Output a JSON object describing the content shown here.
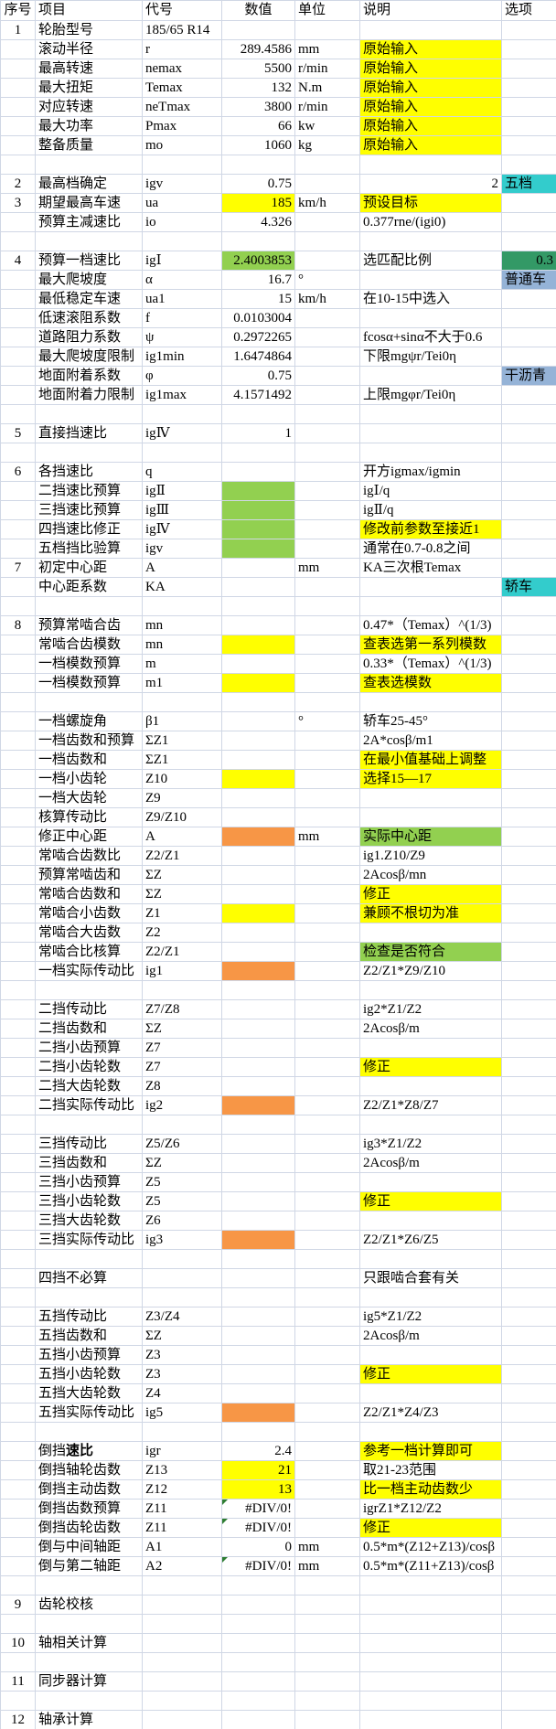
{
  "sheet": {
    "colors": {
      "y": "#FFFF00",
      "g": "#92D050",
      "o": "#F79646",
      "dgreen": "#339966",
      "cyan": "#33CCCC",
      "blue": "#95B3D7"
    },
    "columns": [
      {
        "key": "sn",
        "label": "序号"
      },
      {
        "key": "item",
        "label": "项目"
      },
      {
        "key": "code",
        "label": "代号"
      },
      {
        "key": "val",
        "label": "数值"
      },
      {
        "key": "unit",
        "label": "单位"
      },
      {
        "key": "note",
        "label": "说明"
      },
      {
        "key": "opt",
        "label": "选项"
      }
    ],
    "rows": [
      {
        "sn": "1",
        "item": "轮胎型号",
        "code": "185/65 R14"
      },
      {
        "item": "滚动半径",
        "code": "r",
        "val": "289.4586",
        "unit": "mm",
        "note": "原始输入",
        "noteBg": "y"
      },
      {
        "item": "最高转速",
        "code": "nemax",
        "val": "5500",
        "unit": "r/min",
        "note": "原始输入",
        "noteBg": "y"
      },
      {
        "item": "最大扭矩",
        "code": "Temax",
        "val": "132",
        "unit": "N.m",
        "note": "原始输入",
        "noteBg": "y"
      },
      {
        "item": "对应转速",
        "code": "neTmax",
        "val": "3800",
        "unit": "r/min",
        "note": "原始输入",
        "noteBg": "y"
      },
      {
        "item": "最大功率",
        "code": "Pmax",
        "val": "66",
        "unit": "kw",
        "note": "原始输入",
        "noteBg": "y"
      },
      {
        "item": "整备质量",
        "code": "mo",
        "val": "1060",
        "unit": "kg",
        "note": "原始输入",
        "noteBg": "y"
      },
      {},
      {
        "sn": "2",
        "item": "最高档确定",
        "code": "igv",
        "val": "0.75",
        "note": "2",
        "noteAlign": "right",
        "opt": "五档",
        "optBg": "cyan"
      },
      {
        "sn": "3",
        "item": "期望最高车速",
        "code": "ua",
        "val": "185",
        "valBg": "y",
        "unit": "km/h",
        "note": "预设目标",
        "noteBg": "y"
      },
      {
        "item": "预算主减速比",
        "code": "io",
        "val": "4.326",
        "note": "0.377rne/(igi0)"
      },
      {},
      {
        "sn": "4",
        "item": "预算一档速比",
        "code": "igⅠ",
        "val": "2.4003853",
        "valBg": "g",
        "note": "选匹配比例",
        "opt": "0.3",
        "optBg": "dgreen",
        "optAlign": "right"
      },
      {
        "item": "最大爬坡度",
        "code": "α",
        "val": "16.7",
        "unit": "°",
        "opt": "普通车",
        "optBg": "blue"
      },
      {
        "item": "最低稳定车速",
        "code": "ua1",
        "val": "15",
        "unit": "km/h",
        "note": "在10-15中选入"
      },
      {
        "item": "低速滚阻系数",
        "code": "f",
        "val": "0.0103004"
      },
      {
        "item": "道路阻力系数",
        "code": "ψ",
        "val": "0.2972265",
        "note": "fcosα+sinα不大于0.6"
      },
      {
        "item": "最大爬坡度限制",
        "code": "ig1min",
        "val": "1.6474864",
        "note": "下限mgψr/Tei0η"
      },
      {
        "item": "地面附着系数",
        "code": "φ",
        "val": "0.75",
        "opt": "干沥青",
        "optBg": "blue"
      },
      {
        "item": "地面附着力限制",
        "code": "ig1max",
        "val": "4.1571492",
        "note": "上限mgφr/Tei0η"
      },
      {},
      {
        "sn": "5",
        "item": "直接挡速比",
        "code": "igⅣ",
        "val": "1"
      },
      {},
      {
        "sn": "6",
        "item": "各挡速比",
        "code": "q",
        "note": "开方igmax/igmin"
      },
      {
        "item": "二挡速比预算",
        "code": "igⅡ",
        "valBg": "g",
        "note": "igⅠ/q"
      },
      {
        "item": "三挡速比预算",
        "code": "igⅢ",
        "valBg": "g",
        "note": "igⅡ/q"
      },
      {
        "item": "四挡速比修正",
        "code": "igⅣ",
        "valBg": "g",
        "note": "修改前参数至接近1",
        "noteBg": "y"
      },
      {
        "item": "五档挡比验算",
        "code": "igv",
        "valBg": "g",
        "note": "通常在0.7-0.8之间"
      },
      {
        "sn": "7",
        "item": "初定中心距",
        "code": "A",
        "unit": "mm",
        "note": "KA三次根Temax"
      },
      {
        "item": "中心距系数",
        "code": "KA",
        "opt": "轿车",
        "optBg": "cyan"
      },
      {},
      {
        "sn": "8",
        "item": "预算常啮合齿",
        "code": "mn",
        "note": "0.47*（Temax）^(1/3)"
      },
      {
        "item": "常啮合齿模数",
        "code": "mn",
        "valBg": "y",
        "note": "查表选第一系列模数",
        "noteBg": "y"
      },
      {
        "item": "一档模数预算",
        "code": "m",
        "note": "0.33*（Temax）^(1/3)"
      },
      {
        "item": "一档模数预算",
        "code": "m1",
        "valBg": "y",
        "note": "查表选模数",
        "noteBg": "y"
      },
      {},
      {
        "item": "一档螺旋角",
        "code": "β1",
        "unit": "°",
        "note": "轿车25-45°"
      },
      {
        "item": "一档齿数和预算",
        "code": "ΣZ1",
        "note": "2A*cosβ/m1"
      },
      {
        "item": "一档齿数和",
        "code": "ΣZ1",
        "note": "在最小值基础上调整",
        "noteBg": "y"
      },
      {
        "item": "一档小齿轮",
        "code": "Z10",
        "valBg": "y",
        "note": "选择15—17",
        "noteBg": "y"
      },
      {
        "item": "一档大齿轮",
        "code": "Z9"
      },
      {
        "item": "核算传动比",
        "code": "Z9/Z10"
      },
      {
        "item": "修正中心距",
        "code": "A",
        "valBg": "o",
        "unit": "mm",
        "note": "实际中心距",
        "noteBg": "g"
      },
      {
        "item": "常啮合齿数比",
        "code": "Z2/Z1",
        "note": "ig1.Z10/Z9"
      },
      {
        "item": "预算常啮齿和",
        "code": "ΣZ",
        "note": "2Acosβ/mn"
      },
      {
        "item": "常啮合齿数和",
        "code": "ΣZ",
        "note": "修正",
        "noteBg": "y"
      },
      {
        "item": "常啮合小齿数",
        "code": "Z1",
        "valBg": "y",
        "note": "兼顾不根切为准",
        "noteBg": "y"
      },
      {
        "item": "常啮合大齿数",
        "code": "Z2"
      },
      {
        "item": "常啮合比核算",
        "code": "Z2/Z1",
        "note": "检查是否符合",
        "noteBg": "g"
      },
      {
        "item": "一档实际传动比",
        "code": "ig1",
        "valBg": "o",
        "note": "Z2/Z1*Z9/Z10"
      },
      {},
      {
        "item": "二挡传动比",
        "code": "Z7/Z8",
        "note": "ig2*Z1/Z2"
      },
      {
        "item": "二挡齿数和",
        "code": "ΣZ",
        "note": "2Acosβ/m"
      },
      {
        "item": "二挡小齿预算",
        "code": "Z7"
      },
      {
        "item": "二挡小齿轮数",
        "code": "Z7",
        "note": "修正",
        "noteBg": "y"
      },
      {
        "item": "二挡大齿轮数",
        "code": "Z8"
      },
      {
        "item": "二挡实际传动比",
        "code": "ig2",
        "valBg": "o",
        "note": "Z2/Z1*Z8/Z7"
      },
      {},
      {
        "item": "三挡传动比",
        "code": "Z5/Z6",
        "note": "ig3*Z1/Z2"
      },
      {
        "item": "三挡齿数和",
        "code": "ΣZ",
        "note": "2Acosβ/m"
      },
      {
        "item": "三挡小齿预算",
        "code": "Z5"
      },
      {
        "item": "三挡小齿轮数",
        "code": "Z5",
        "note": "修正",
        "noteBg": "y"
      },
      {
        "item": "三挡大齿轮数",
        "code": "Z6"
      },
      {
        "item": "三挡实际传动比",
        "code": "ig3",
        "valBg": "o",
        "note": "Z2/Z1*Z6/Z5"
      },
      {},
      {
        "item": "四挡不必算",
        "note": "只跟啮合套有关"
      },
      {},
      {
        "item": "五挡传动比",
        "code": "Z3/Z4",
        "note": "ig5*Z1/Z2"
      },
      {
        "item": "五挡齿数和",
        "code": "ΣZ",
        "note": "2Acosβ/m"
      },
      {
        "item": "五挡小齿预算",
        "code": "Z3"
      },
      {
        "item": "五挡小齿轮数",
        "code": "Z3",
        "note": "修正",
        "noteBg": "y"
      },
      {
        "item": "五挡大齿轮数",
        "code": "Z4"
      },
      {
        "item": "五挡实际传动比",
        "code": "ig5",
        "valBg": "o",
        "note": "Z2/Z1*Z4/Z3"
      },
      {},
      {
        "item": "倒挡",
        "itemB": "速比",
        "code": "igr",
        "val": "2.4",
        "note": "参考一档计算即可",
        "noteBg": "y"
      },
      {
        "item": "倒挡轴轮齿数",
        "code": "Z13",
        "val": "21",
        "valBg": "y",
        "note": "取21-23范围"
      },
      {
        "item": "倒挡主动齿数",
        "code": "Z12",
        "val": "13",
        "valBg": "y",
        "note": "比一档主动齿数少",
        "noteBg": "y"
      },
      {
        "item": "倒挡齿数预算",
        "code": "Z11",
        "val": "#DIV/0!",
        "err": true,
        "note": "igrZ1*Z12/Z2"
      },
      {
        "item": "倒挡齿轮齿数",
        "code": "Z11",
        "val": "#DIV/0!",
        "err": true,
        "note": "修正",
        "noteBg": "y"
      },
      {
        "item": "倒与中间轴距",
        "code": "A1",
        "val": "0",
        "unit": "mm",
        "note": "0.5*m*(Z12+Z13)/cosβ"
      },
      {
        "item": "倒与第二轴距",
        "code": "A2",
        "val": "#DIV/0!",
        "err": true,
        "unit": "mm",
        "note": "0.5*m*(Z11+Z13)/cosβ"
      },
      {},
      {
        "sn": "9",
        "item": "齿轮校核"
      },
      {},
      {
        "sn": "10",
        "item": "轴相关计算"
      },
      {},
      {
        "sn": "11",
        "item": "同步器计算"
      },
      {},
      {
        "sn": "12",
        "item": "轴承计算"
      }
    ]
  }
}
